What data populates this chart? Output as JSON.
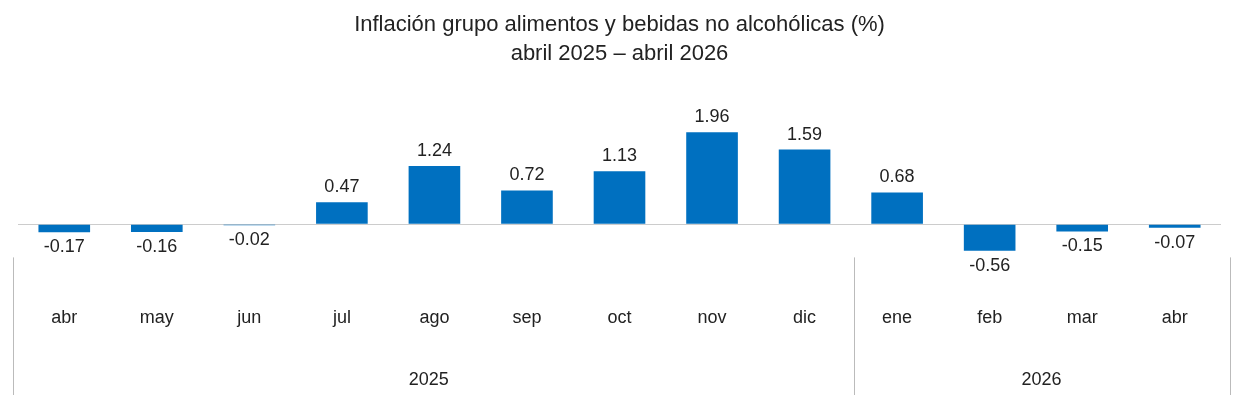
{
  "chart_data": {
    "type": "bar",
    "title": "Inflación grupo alimentos y bebidas no alcohólicas (%)",
    "subtitle": "abril 2025 – abril 2026",
    "categories": [
      "abr",
      "may",
      "jun",
      "jul",
      "ago",
      "sep",
      "oct",
      "nov",
      "dic",
      "ene",
      "feb",
      "mar",
      "abr"
    ],
    "values": [
      -0.17,
      -0.16,
      -0.02,
      0.47,
      1.24,
      0.72,
      1.13,
      1.96,
      1.59,
      0.68,
      -0.56,
      -0.15,
      -0.07
    ],
    "color": "#0070c0",
    "relative": false,
    "data_labels": true,
    "grid": false,
    "legend": false,
    "annotations": [
      "2025",
      "2026"
    ]
  }
}
